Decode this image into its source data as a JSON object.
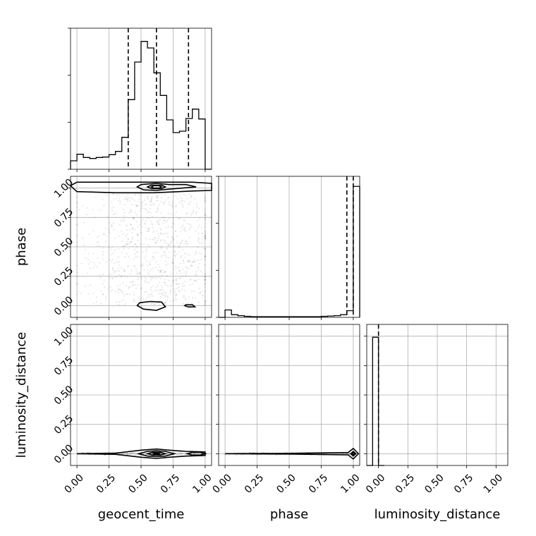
{
  "chart_data": {
    "type": "corner",
    "parameters": [
      "geocent_time",
      "phase",
      "luminosity_distance"
    ],
    "ticks": {
      "values": [
        0.0,
        0.25,
        0.5,
        0.75,
        1.0
      ],
      "labels": [
        "0.00",
        "0.25",
        "0.50",
        "0.75",
        "1.00"
      ]
    },
    "xlim": {
      "geocent_time": [
        -0.05,
        1.05
      ],
      "phase": [
        -0.05,
        1.05
      ],
      "luminosity_distance": [
        -0.1,
        1.1
      ]
    },
    "ylim": {
      "phase": [
        -0.1,
        1.1
      ],
      "luminosity_distance": [
        -0.1,
        1.1
      ]
    },
    "grid": true,
    "histograms": [
      {
        "parameter": "geocent_time",
        "bin_edges": [
          -0.05,
          0.0,
          0.05,
          0.1,
          0.15,
          0.2,
          0.25,
          0.3,
          0.35,
          0.4,
          0.45,
          0.5,
          0.55,
          0.6,
          0.65,
          0.7,
          0.75,
          0.8,
          0.85,
          0.9,
          0.95,
          1.0,
          1.05
        ],
        "density": [
          0.18,
          0.32,
          0.25,
          0.23,
          0.25,
          0.26,
          0.31,
          0.38,
          0.68,
          1.48,
          2.28,
          2.72,
          2.58,
          2.05,
          1.57,
          1.05,
          0.78,
          0.81,
          1.08,
          1.28,
          1.07,
          0.0
        ],
        "quantiles": [
          0.4,
          0.62,
          0.87
        ],
        "ylim": [
          0,
          3.0
        ]
      },
      {
        "parameter": "phase",
        "bin_edges": [
          -0.05,
          0.0,
          0.05,
          0.1,
          0.15,
          0.2,
          0.25,
          0.3,
          0.35,
          0.4,
          0.45,
          0.5,
          0.55,
          0.6,
          0.65,
          0.7,
          0.75,
          0.8,
          0.85,
          0.9,
          0.95,
          1.0,
          1.05
        ],
        "density": [
          0.0,
          0.22,
          0.08,
          0.05,
          0.03,
          0.02,
          0.02,
          0.02,
          0.02,
          0.02,
          0.02,
          0.02,
          0.02,
          0.02,
          0.02,
          0.02,
          0.03,
          0.04,
          0.05,
          0.08,
          0.2,
          3.9
        ],
        "quantiles": [
          0.95,
          1.0
        ],
        "ylim": [
          0,
          4.2
        ]
      },
      {
        "parameter": "luminosity_distance",
        "bin_edges": [
          -0.1,
          -0.05,
          0.0,
          0.05
        ],
        "density": [
          0.0,
          1.0,
          0.0
        ],
        "quantiles": [
          0.0
        ],
        "ylim": [
          0,
          1.1
        ],
        "ytick_labels": false
      }
    ],
    "panels_2d": [
      {
        "x": "geocent_time",
        "y": "phase",
        "contours": [
          {
            "level": "outer",
            "points": [
              [
                -0.05,
                1.02
              ],
              [
                0.0,
                0.97
              ],
              [
                0.3,
                0.96
              ],
              [
                0.6,
                0.96
              ],
              [
                0.9,
                0.975
              ],
              [
                1.05,
                0.98
              ],
              [
                1.05,
                1.04
              ],
              [
                0.9,
                1.05
              ],
              [
                0.6,
                1.05
              ],
              [
                0.3,
                1.05
              ],
              [
                0.0,
                1.05
              ]
            ]
          },
          {
            "level": "outer",
            "points": [
              [
                0.47,
                0.0
              ],
              [
                0.52,
                -0.03
              ],
              [
                0.62,
                -0.04
              ],
              [
                0.69,
                -0.01
              ],
              [
                0.66,
                0.03
              ],
              [
                0.57,
                0.035
              ],
              [
                0.49,
                0.025
              ]
            ]
          },
          {
            "level": "outer",
            "points": [
              [
                0.84,
                0.0
              ],
              [
                0.87,
                -0.012
              ],
              [
                0.92,
                -0.01
              ],
              [
                0.9,
                0.008
              ],
              [
                0.85,
                0.008
              ]
            ]
          },
          {
            "level": "mid",
            "points": [
              [
                0.47,
                1.01
              ],
              [
                0.52,
                0.985
              ],
              [
                0.62,
                0.98
              ],
              [
                0.71,
                0.99
              ],
              [
                0.82,
                1.0
              ],
              [
                0.93,
                1.01
              ],
              [
                0.85,
                1.03
              ],
              [
                0.72,
                1.03
              ],
              [
                0.62,
                1.04
              ],
              [
                0.5,
                1.03
              ]
            ]
          },
          {
            "level": "inner",
            "points": [
              [
                0.55,
                1.01
              ],
              [
                0.58,
                0.995
              ],
              [
                0.66,
                0.995
              ],
              [
                0.69,
                1.01
              ],
              [
                0.66,
                1.025
              ],
              [
                0.58,
                1.025
              ]
            ]
          },
          {
            "level": "core",
            "points": [
              [
                0.58,
                1.01
              ],
              [
                0.6,
                1.0
              ],
              [
                0.64,
                1.0
              ],
              [
                0.66,
                1.01
              ],
              [
                0.64,
                1.02
              ],
              [
                0.6,
                1.02
              ]
            ]
          }
        ]
      },
      {
        "x": "geocent_time",
        "y": "luminosity_distance",
        "contours": [
          {
            "level": "outer",
            "points": [
              [
                0.0,
                0.0
              ],
              [
                0.3,
                -0.005
              ],
              [
                0.5,
                -0.03
              ],
              [
                0.62,
                -0.04
              ],
              [
                0.72,
                -0.03
              ],
              [
                0.85,
                -0.02
              ],
              [
                1.0,
                -0.015
              ],
              [
                1.0,
                0.015
              ],
              [
                0.85,
                0.02
              ],
              [
                0.72,
                0.03
              ],
              [
                0.62,
                0.04
              ],
              [
                0.5,
                0.03
              ],
              [
                0.3,
                0.005
              ]
            ]
          },
          {
            "level": "mid",
            "points": [
              [
                0.48,
                0.0
              ],
              [
                0.55,
                -0.02
              ],
              [
                0.62,
                -0.025
              ],
              [
                0.69,
                -0.02
              ],
              [
                0.76,
                0.0
              ],
              [
                0.69,
                0.02
              ],
              [
                0.62,
                0.025
              ],
              [
                0.55,
                0.02
              ]
            ]
          },
          {
            "level": "inner",
            "points": [
              [
                0.55,
                0.0
              ],
              [
                0.59,
                -0.012
              ],
              [
                0.65,
                -0.012
              ],
              [
                0.69,
                0.0
              ],
              [
                0.65,
                0.012
              ],
              [
                0.59,
                0.012
              ]
            ]
          },
          {
            "level": "core",
            "points": [
              [
                0.59,
                0.0
              ],
              [
                0.62,
                -0.006
              ],
              [
                0.65,
                0.0
              ],
              [
                0.62,
                0.006
              ]
            ]
          },
          {
            "level": "mid",
            "points": [
              [
                0.86,
                0.0
              ],
              [
                0.9,
                -0.012
              ],
              [
                0.96,
                -0.012
              ],
              [
                1.0,
                0.0
              ],
              [
                0.96,
                0.012
              ],
              [
                0.9,
                0.012
              ]
            ]
          }
        ]
      },
      {
        "x": "phase",
        "y": "luminosity_distance",
        "contours": [
          {
            "level": "outer",
            "points": [
              [
                0.0,
                0.0
              ],
              [
                0.5,
                -0.003
              ],
              [
                0.96,
                -0.01
              ],
              [
                1.0,
                -0.045
              ],
              [
                1.04,
                0.0
              ],
              [
                1.0,
                0.045
              ],
              [
                0.96,
                0.01
              ],
              [
                0.5,
                0.003
              ]
            ]
          },
          {
            "level": "mid",
            "points": [
              [
                0.98,
                0.0
              ],
              [
                1.0,
                -0.02
              ],
              [
                1.02,
                0.0
              ],
              [
                1.0,
                0.02
              ]
            ]
          },
          {
            "level": "core",
            "points": [
              [
                0.99,
                0.0
              ],
              [
                1.0,
                -0.01
              ],
              [
                1.01,
                0.0
              ],
              [
                1.0,
                0.01
              ]
            ]
          }
        ]
      }
    ]
  }
}
